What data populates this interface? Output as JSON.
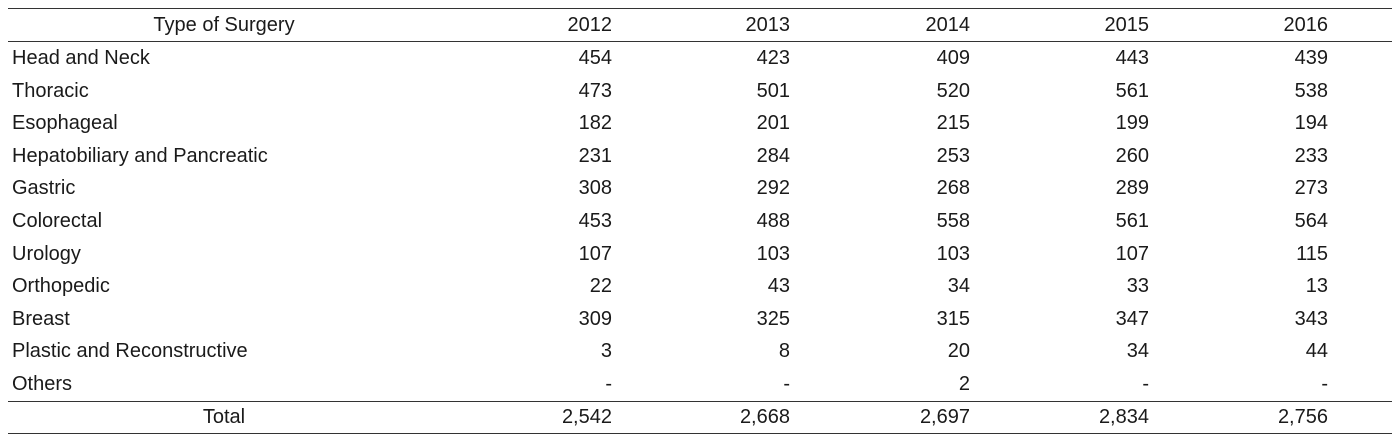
{
  "table": {
    "header": [
      "Type of Surgery",
      "2012",
      "2013",
      "2014",
      "2015",
      "2016"
    ],
    "rows": [
      [
        "Head and Neck",
        "454",
        "423",
        "409",
        "443",
        "439"
      ],
      [
        "Thoracic",
        "473",
        "501",
        "520",
        "561",
        "538"
      ],
      [
        "Esophageal",
        "182",
        "201",
        "215",
        "199",
        "194"
      ],
      [
        "Hepatobiliary and Pancreatic",
        "231",
        "284",
        "253",
        "260",
        "233"
      ],
      [
        "Gastric",
        "308",
        "292",
        "268",
        "289",
        "273"
      ],
      [
        "Colorectal",
        "453",
        "488",
        "558",
        "561",
        "564"
      ],
      [
        "Urology",
        "107",
        "103",
        "103",
        "107",
        "115"
      ],
      [
        "Orthopedic",
        "22",
        "43",
        "34",
        "33",
        "13"
      ],
      [
        "Breast",
        "309",
        "325",
        "315",
        "347",
        "343"
      ],
      [
        "Plastic and Reconstructive",
        "3",
        "8",
        "20",
        "34",
        "44"
      ],
      [
        "Others",
        "-",
        "-",
        "2",
        "-",
        "-"
      ]
    ],
    "total": [
      "Total",
      "2,542",
      "2,668",
      "2,697",
      "2,834",
      "2,756"
    ]
  }
}
